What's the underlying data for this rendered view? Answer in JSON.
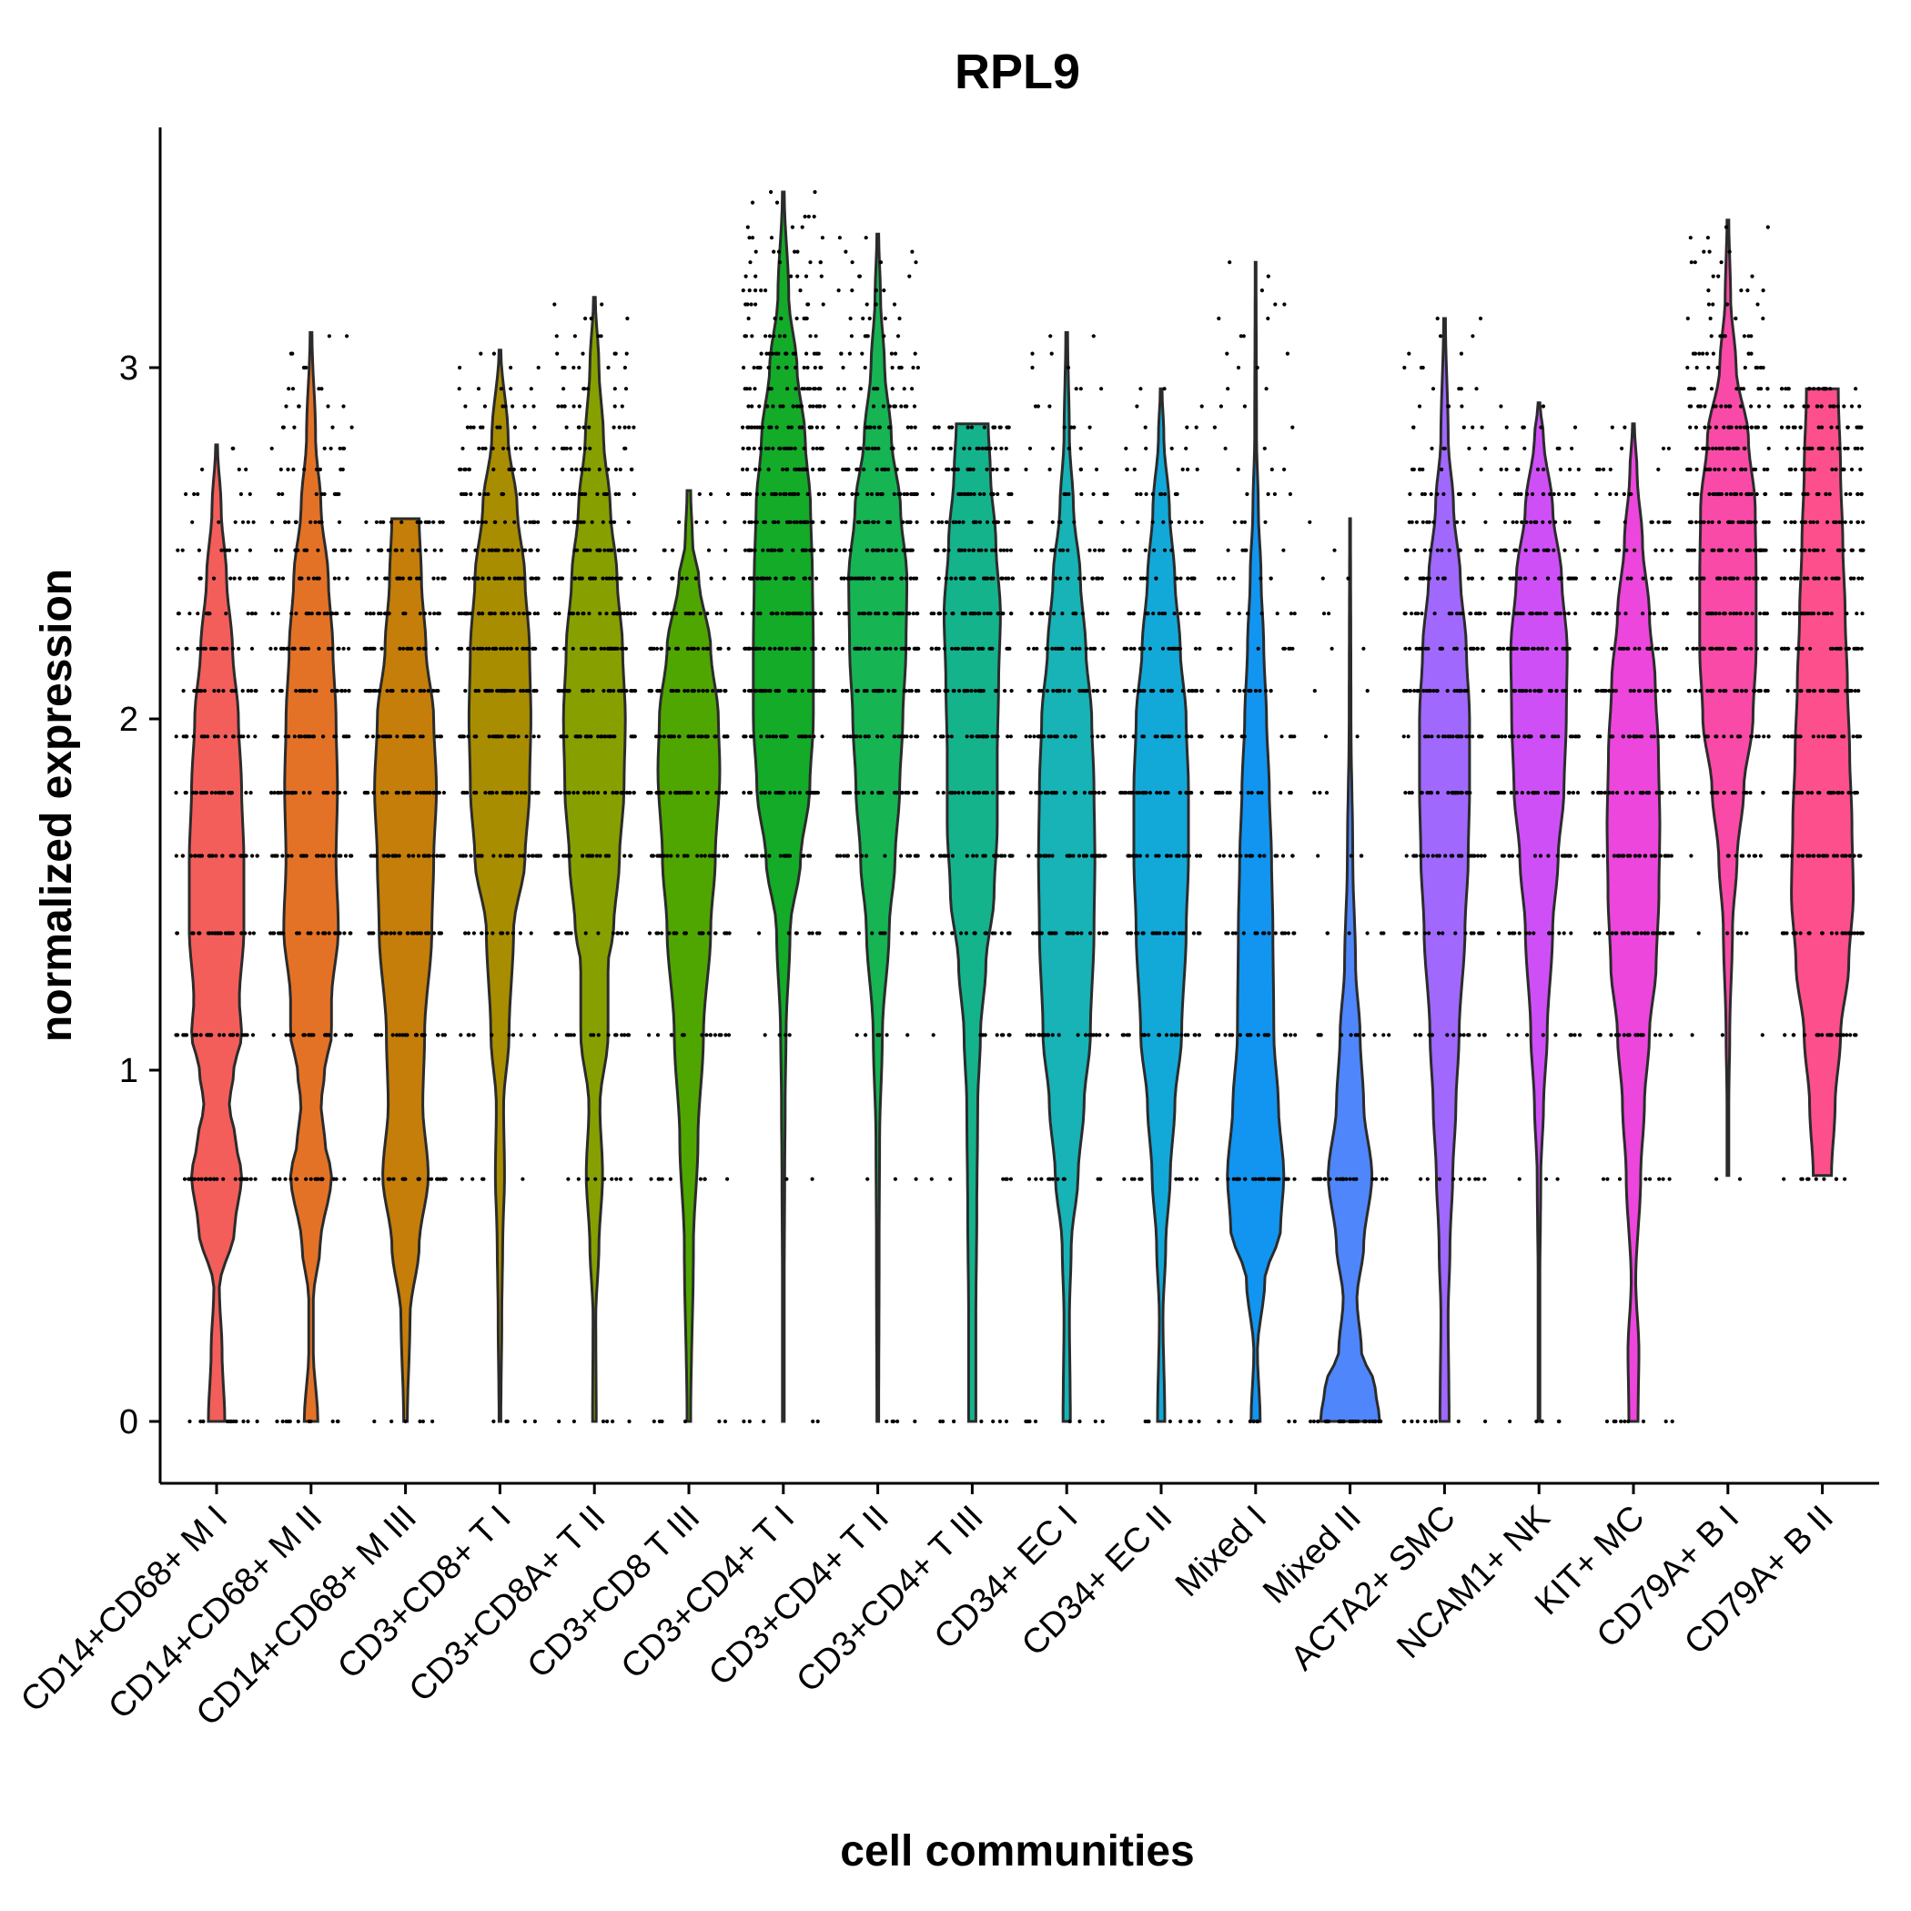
{
  "chart_data": {
    "type": "violin",
    "title": "RPL9",
    "xlabel": "cell communities",
    "ylabel": "normalized expression",
    "ylim": [
      -0.15,
      3.7
    ],
    "y_ticks": [
      0,
      1,
      2,
      3
    ],
    "grid": false,
    "legend": "none",
    "series": [
      {
        "name": "CD14+CD68+ M I",
        "color": "#F35E5A",
        "max": 2.78,
        "stops": [
          [
            0,
            0.18
          ],
          [
            0.2,
            0.12
          ],
          [
            0.38,
            0.06
          ],
          [
            0.55,
            0.4
          ],
          [
            0.7,
            0.55
          ],
          [
            0.8,
            0.42
          ],
          [
            0.9,
            0.28
          ],
          [
            1.0,
            0.38
          ],
          [
            1.1,
            0.55
          ],
          [
            1.2,
            0.5
          ],
          [
            1.4,
            0.6
          ],
          [
            1.6,
            0.6
          ],
          [
            1.8,
            0.55
          ],
          [
            2.0,
            0.48
          ],
          [
            2.2,
            0.35
          ],
          [
            2.4,
            0.22
          ],
          [
            2.6,
            0.1
          ],
          [
            2.78,
            0.02
          ]
        ]
      },
      {
        "name": "CD14+CD68+ M II",
        "color": "#E47226",
        "max": 3.1,
        "stops": [
          [
            0,
            0.15
          ],
          [
            0.2,
            0.05
          ],
          [
            0.35,
            0.05
          ],
          [
            0.5,
            0.2
          ],
          [
            0.7,
            0.45
          ],
          [
            0.8,
            0.3
          ],
          [
            0.9,
            0.22
          ],
          [
            1.0,
            0.3
          ],
          [
            1.1,
            0.45
          ],
          [
            1.2,
            0.45
          ],
          [
            1.4,
            0.6
          ],
          [
            1.6,
            0.55
          ],
          [
            1.8,
            0.58
          ],
          [
            2.0,
            0.55
          ],
          [
            2.2,
            0.48
          ],
          [
            2.4,
            0.38
          ],
          [
            2.6,
            0.22
          ],
          [
            2.8,
            0.1
          ],
          [
            3.1,
            0.02
          ]
        ]
      },
      {
        "name": "CD14+CD68+ M III",
        "color": "#C57E09",
        "max": 2.57,
        "stops": [
          [
            0,
            0.04
          ],
          [
            0.3,
            0.1
          ],
          [
            0.5,
            0.3
          ],
          [
            0.7,
            0.5
          ],
          [
            0.9,
            0.38
          ],
          [
            1.1,
            0.42
          ],
          [
            1.4,
            0.58
          ],
          [
            1.6,
            0.62
          ],
          [
            1.8,
            0.68
          ],
          [
            2.0,
            0.62
          ],
          [
            2.2,
            0.45
          ],
          [
            2.4,
            0.35
          ],
          [
            2.57,
            0.3
          ]
        ]
      },
      {
        "name": "CD3+CD8+ T I",
        "color": "#A98D00",
        "max": 3.05,
        "stops": [
          [
            0,
            0.02
          ],
          [
            0.3,
            0.04
          ],
          [
            0.5,
            0.06
          ],
          [
            0.7,
            0.1
          ],
          [
            0.9,
            0.08
          ],
          [
            1.1,
            0.2
          ],
          [
            1.4,
            0.3
          ],
          [
            1.6,
            0.55
          ],
          [
            1.8,
            0.65
          ],
          [
            2.0,
            0.68
          ],
          [
            2.2,
            0.65
          ],
          [
            2.4,
            0.55
          ],
          [
            2.6,
            0.38
          ],
          [
            2.8,
            0.18
          ],
          [
            3.05,
            0.02
          ]
        ]
      },
      {
        "name": "CD3+CD8A+ T II",
        "color": "#87A000",
        "max": 3.2,
        "stops": [
          [
            0,
            0.04
          ],
          [
            0.3,
            0.03
          ],
          [
            0.5,
            0.1
          ],
          [
            0.7,
            0.18
          ],
          [
            0.9,
            0.12
          ],
          [
            1.1,
            0.3
          ],
          [
            1.3,
            0.3
          ],
          [
            1.4,
            0.42
          ],
          [
            1.6,
            0.55
          ],
          [
            1.8,
            0.65
          ],
          [
            2.0,
            0.68
          ],
          [
            2.2,
            0.62
          ],
          [
            2.4,
            0.5
          ],
          [
            2.6,
            0.35
          ],
          [
            2.8,
            0.2
          ],
          [
            3.0,
            0.1
          ],
          [
            3.2,
            0.02
          ]
        ]
      },
      {
        "name": "CD3+CD8 T III",
        "color": "#4FA600",
        "max": 2.65,
        "stops": [
          [
            0,
            0.04
          ],
          [
            0.5,
            0.1
          ],
          [
            0.8,
            0.2
          ],
          [
            1.1,
            0.32
          ],
          [
            1.4,
            0.48
          ],
          [
            1.6,
            0.58
          ],
          [
            1.85,
            0.68
          ],
          [
            2.0,
            0.65
          ],
          [
            2.2,
            0.48
          ],
          [
            2.4,
            0.22
          ],
          [
            2.5,
            0.08
          ],
          [
            2.65,
            0.04
          ]
        ]
      },
      {
        "name": "CD3+CD4+ T I",
        "color": "#13AB28",
        "max": 3.5,
        "stops": [
          [
            0,
            0.02
          ],
          [
            0.4,
            0.02
          ],
          [
            0.7,
            0.03
          ],
          [
            0.9,
            0.04
          ],
          [
            1.1,
            0.06
          ],
          [
            1.4,
            0.15
          ],
          [
            1.6,
            0.38
          ],
          [
            1.8,
            0.58
          ],
          [
            2.0,
            0.66
          ],
          [
            2.2,
            0.66
          ],
          [
            2.4,
            0.64
          ],
          [
            2.6,
            0.6
          ],
          [
            2.8,
            0.48
          ],
          [
            3.0,
            0.3
          ],
          [
            3.2,
            0.12
          ],
          [
            3.5,
            0.02
          ]
        ]
      },
      {
        "name": "CD3+CD4+ T II",
        "color": "#16B453",
        "max": 3.38,
        "stops": [
          [
            0,
            0.02
          ],
          [
            0.5,
            0.03
          ],
          [
            0.8,
            0.04
          ],
          [
            1.1,
            0.1
          ],
          [
            1.4,
            0.25
          ],
          [
            1.6,
            0.38
          ],
          [
            1.8,
            0.48
          ],
          [
            2.0,
            0.55
          ],
          [
            2.2,
            0.62
          ],
          [
            2.4,
            0.64
          ],
          [
            2.6,
            0.5
          ],
          [
            2.8,
            0.3
          ],
          [
            3.0,
            0.15
          ],
          [
            3.2,
            0.06
          ],
          [
            3.38,
            0.02
          ]
        ]
      },
      {
        "name": "CD3+CD4+ T III",
        "color": "#14B38C",
        "max": 2.84,
        "stops": [
          [
            0,
            0.08
          ],
          [
            0.3,
            0.08
          ],
          [
            0.6,
            0.1
          ],
          [
            0.9,
            0.12
          ],
          [
            1.1,
            0.18
          ],
          [
            1.3,
            0.3
          ],
          [
            1.5,
            0.48
          ],
          [
            1.7,
            0.55
          ],
          [
            1.9,
            0.55
          ],
          [
            2.1,
            0.58
          ],
          [
            2.3,
            0.62
          ],
          [
            2.5,
            0.52
          ],
          [
            2.7,
            0.4
          ],
          [
            2.84,
            0.35
          ]
        ]
      },
      {
        "name": "CD34+ EC I",
        "color": "#17B3B6",
        "max": 3.1,
        "stops": [
          [
            0,
            0.08
          ],
          [
            0.3,
            0.06
          ],
          [
            0.5,
            0.1
          ],
          [
            0.7,
            0.25
          ],
          [
            0.9,
            0.38
          ],
          [
            1.1,
            0.52
          ],
          [
            1.4,
            0.6
          ],
          [
            1.6,
            0.62
          ],
          [
            1.8,
            0.6
          ],
          [
            2.0,
            0.55
          ],
          [
            2.2,
            0.42
          ],
          [
            2.4,
            0.3
          ],
          [
            2.6,
            0.15
          ],
          [
            2.8,
            0.06
          ],
          [
            3.1,
            0.02
          ]
        ]
      },
      {
        "name": "CD34+ EC II",
        "color": "#12A9D9",
        "max": 2.94,
        "stops": [
          [
            0,
            0.08
          ],
          [
            0.3,
            0.04
          ],
          [
            0.5,
            0.1
          ],
          [
            0.7,
            0.2
          ],
          [
            0.9,
            0.3
          ],
          [
            1.1,
            0.45
          ],
          [
            1.4,
            0.55
          ],
          [
            1.6,
            0.6
          ],
          [
            1.8,
            0.6
          ],
          [
            2.0,
            0.55
          ],
          [
            2.2,
            0.42
          ],
          [
            2.4,
            0.3
          ],
          [
            2.6,
            0.18
          ],
          [
            2.8,
            0.06
          ],
          [
            2.94,
            0.02
          ]
        ]
      },
      {
        "name": "Mixed I",
        "color": "#1195F0",
        "max": 3.3,
        "stops": [
          [
            0,
            0.1
          ],
          [
            0.2,
            0.04
          ],
          [
            0.4,
            0.2
          ],
          [
            0.55,
            0.55
          ],
          [
            0.7,
            0.62
          ],
          [
            0.9,
            0.5
          ],
          [
            1.1,
            0.4
          ],
          [
            1.4,
            0.38
          ],
          [
            1.6,
            0.35
          ],
          [
            1.8,
            0.3
          ],
          [
            2.0,
            0.24
          ],
          [
            2.2,
            0.18
          ],
          [
            2.4,
            0.12
          ],
          [
            2.6,
            0.06
          ],
          [
            2.8,
            0.02
          ],
          [
            3.3,
            0.01
          ]
        ]
      },
      {
        "name": "Mixed II",
        "color": "#4F86FC",
        "max": 2.57,
        "stops": [
          [
            0,
            0.65
          ],
          [
            0.1,
            0.55
          ],
          [
            0.2,
            0.25
          ],
          [
            0.35,
            0.15
          ],
          [
            0.5,
            0.3
          ],
          [
            0.7,
            0.48
          ],
          [
            0.9,
            0.3
          ],
          [
            1.1,
            0.22
          ],
          [
            1.3,
            0.12
          ],
          [
            1.6,
            0.06
          ],
          [
            2.0,
            0.02
          ],
          [
            2.57,
            0.01
          ]
        ]
      },
      {
        "name": "ACTA2+ SMC",
        "color": "#A068FC",
        "max": 3.14,
        "stops": [
          [
            0,
            0.1
          ],
          [
            0.3,
            0.08
          ],
          [
            0.5,
            0.12
          ],
          [
            0.7,
            0.18
          ],
          [
            0.9,
            0.25
          ],
          [
            1.1,
            0.32
          ],
          [
            1.4,
            0.45
          ],
          [
            1.6,
            0.52
          ],
          [
            1.8,
            0.55
          ],
          [
            2.0,
            0.55
          ],
          [
            2.2,
            0.48
          ],
          [
            2.4,
            0.35
          ],
          [
            2.6,
            0.2
          ],
          [
            2.8,
            0.08
          ],
          [
            3.14,
            0.02
          ]
        ]
      },
      {
        "name": "NCAM1+ NK",
        "color": "#CF4FF7",
        "max": 2.9,
        "stops": [
          [
            0,
            0.02
          ],
          [
            0.4,
            0.02
          ],
          [
            0.7,
            0.04
          ],
          [
            0.9,
            0.1
          ],
          [
            1.1,
            0.18
          ],
          [
            1.4,
            0.3
          ],
          [
            1.6,
            0.42
          ],
          [
            1.8,
            0.55
          ],
          [
            2.0,
            0.6
          ],
          [
            2.2,
            0.62
          ],
          [
            2.4,
            0.5
          ],
          [
            2.6,
            0.3
          ],
          [
            2.8,
            0.1
          ],
          [
            2.9,
            0.02
          ]
        ]
      },
      {
        "name": "KIT+ MC",
        "color": "#EC46DC",
        "max": 2.84,
        "stops": [
          [
            0,
            0.1
          ],
          [
            0.2,
            0.12
          ],
          [
            0.4,
            0.05
          ],
          [
            0.7,
            0.16
          ],
          [
            0.9,
            0.24
          ],
          [
            1.1,
            0.35
          ],
          [
            1.3,
            0.5
          ],
          [
            1.5,
            0.56
          ],
          [
            1.7,
            0.58
          ],
          [
            1.9,
            0.55
          ],
          [
            2.1,
            0.48
          ],
          [
            2.3,
            0.35
          ],
          [
            2.5,
            0.2
          ],
          [
            2.7,
            0.08
          ],
          [
            2.84,
            0.02
          ]
        ]
      },
      {
        "name": "CD79A+ B I",
        "color": "#F94AA8",
        "max": 3.42,
        "stops": [
          [
            0.7,
            0.02
          ],
          [
            0.9,
            0.02
          ],
          [
            1.1,
            0.04
          ],
          [
            1.4,
            0.1
          ],
          [
            1.6,
            0.2
          ],
          [
            1.8,
            0.35
          ],
          [
            2.0,
            0.55
          ],
          [
            2.2,
            0.62
          ],
          [
            2.4,
            0.62
          ],
          [
            2.6,
            0.6
          ],
          [
            2.8,
            0.45
          ],
          [
            3.0,
            0.18
          ],
          [
            3.2,
            0.06
          ],
          [
            3.42,
            0.02
          ]
        ]
      },
      {
        "name": "CD79A+ B II",
        "color": "#FD4F8C",
        "max": 2.94,
        "stops": [
          [
            0.7,
            0.2
          ],
          [
            0.9,
            0.28
          ],
          [
            1.1,
            0.4
          ],
          [
            1.3,
            0.58
          ],
          [
            1.5,
            0.68
          ],
          [
            1.7,
            0.65
          ],
          [
            1.9,
            0.6
          ],
          [
            2.1,
            0.55
          ],
          [
            2.3,
            0.5
          ],
          [
            2.5,
            0.45
          ],
          [
            2.7,
            0.4
          ],
          [
            2.94,
            0.35
          ]
        ]
      }
    ]
  }
}
